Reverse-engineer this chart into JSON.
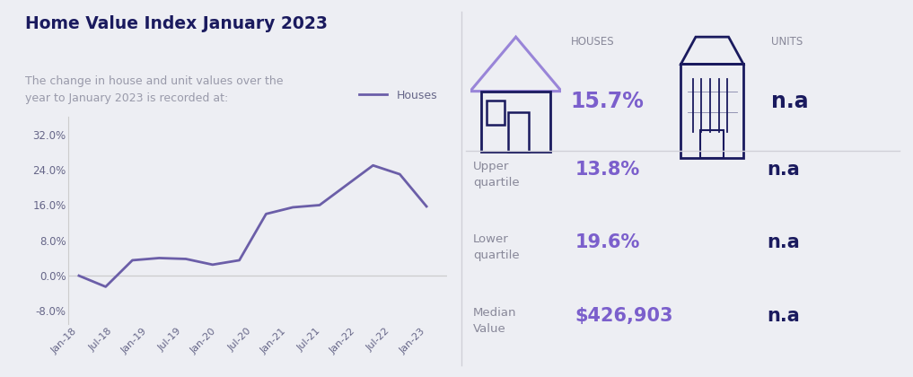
{
  "title": "Home Value Index January 2023",
  "subtitle": "The change in house and unit values over the\nyear to January 2023 is recorded at:",
  "background_color": "#edeef3",
  "line_color": "#6B5EA8",
  "line_label": "Houses",
  "x_labels": [
    "Jan-18",
    "Jul-18",
    "Jan-19",
    "Jul-19",
    "Jan-20",
    "Jul-20",
    "Jan-21",
    "Jul-21",
    "Jan-22",
    "Jul-22",
    "Jan-23"
  ],
  "y_ticks": [
    -8.0,
    0.0,
    8.0,
    16.0,
    24.0,
    32.0
  ],
  "y_tick_labels": [
    "-8.0%",
    "0.0%",
    "8.0%",
    "16.0%",
    "24.0%",
    "32.0%"
  ],
  "ylim": [
    -11,
    36
  ],
  "houses_data": [
    0.0,
    -2.5,
    3.5,
    4.0,
    3.8,
    2.5,
    3.5,
    14.0,
    15.5,
    16.0,
    20.5,
    25.0,
    23.0,
    15.7
  ],
  "title_color": "#1a1a5e",
  "subtitle_color": "#999aaa",
  "axis_color": "#cccccc",
  "tick_color": "#666688",
  "houses_label": "HOUSES",
  "houses_value": "15.7%",
  "units_label": "UNITS",
  "units_value": "n.a",
  "upper_quartile_label": "Upper\nquartile",
  "upper_quartile_houses": "13.8%",
  "upper_quartile_units": "n.a",
  "lower_quartile_label": "Lower\nquartile",
  "lower_quartile_houses": "19.6%",
  "lower_quartile_units": "n.a",
  "median_label": "Median\nValue",
  "median_houses": "$426,903",
  "median_units": "n.a",
  "purple_light": "#9985d8",
  "purple_dark": "#7B5FCC",
  "dark_navy": "#1a1a5e",
  "stats_label_color": "#888899",
  "divider_color": "#d0d0d8",
  "house_roof_color": "#9985d8",
  "house_body_color": "#1a1a5e"
}
